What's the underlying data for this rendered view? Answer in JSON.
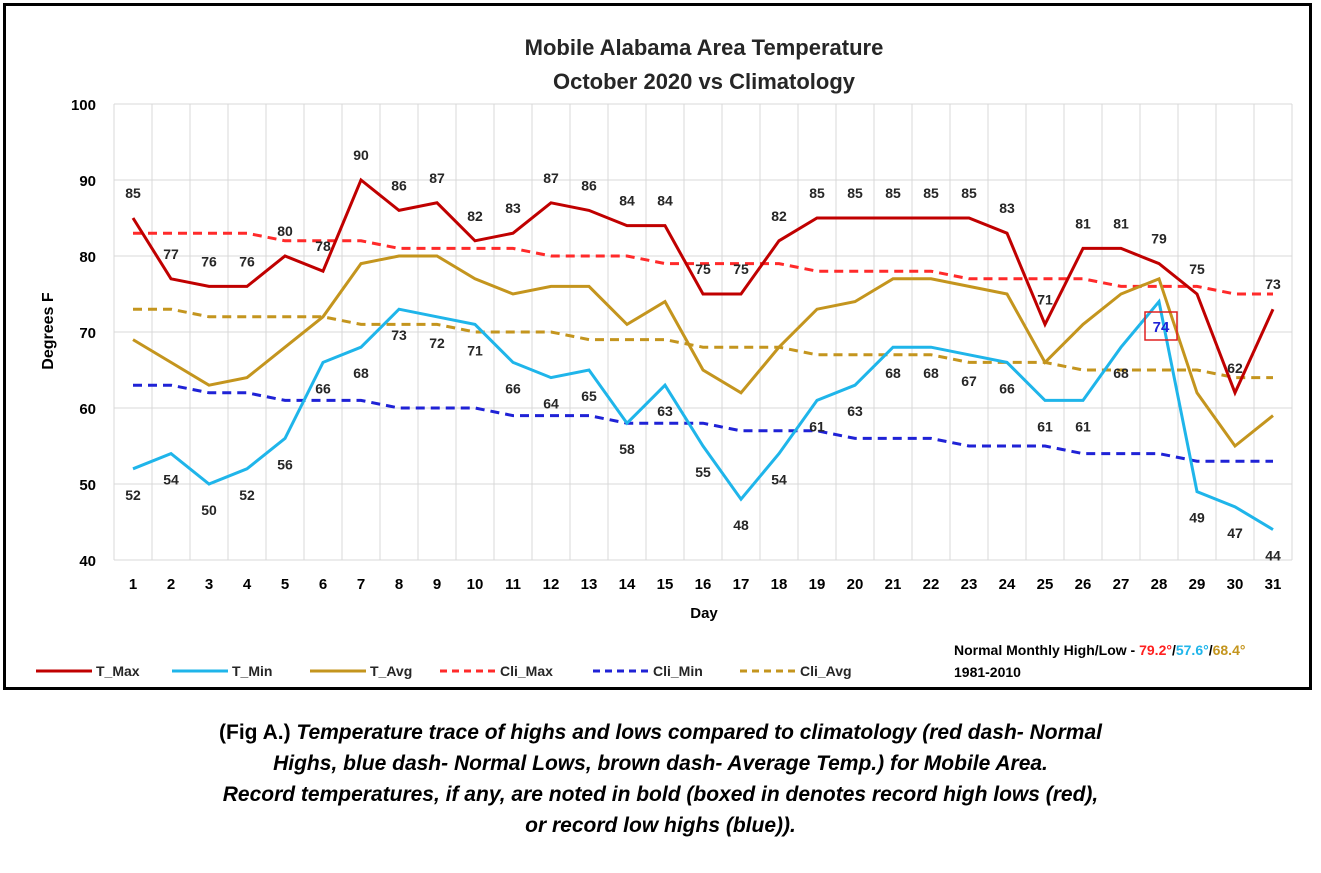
{
  "chart_data": {
    "type": "line",
    "title": "Mobile Alabama Area Temperature",
    "subtitle": "October 2020 vs Climatology",
    "xlabel": "Day",
    "ylabel": "Degrees F",
    "ylim": [
      40,
      100
    ],
    "yticks": [
      "40",
      "50",
      "60",
      "70",
      "80",
      "90",
      "100"
    ],
    "x": [
      "1",
      "2",
      "3",
      "4",
      "5",
      "6",
      "7",
      "8",
      "9",
      "10",
      "11",
      "12",
      "13",
      "14",
      "15",
      "16",
      "17",
      "18",
      "19",
      "20",
      "21",
      "22",
      "23",
      "24",
      "25",
      "26",
      "27",
      "28",
      "29",
      "30",
      "31"
    ],
    "grid": "horizontal and vertical",
    "legend_position": "bottom",
    "series": [
      {
        "name": "T_Max",
        "color": "#C00000",
        "dash": "solid",
        "labels": "above",
        "values": [
          85,
          77,
          76,
          76,
          80,
          78,
          90,
          86,
          87,
          82,
          83,
          87,
          86,
          84,
          84,
          75,
          75,
          82,
          85,
          85,
          85,
          85,
          85,
          83,
          71,
          81,
          81,
          79,
          75,
          62,
          73
        ]
      },
      {
        "name": "T_Min",
        "color": "#1FB5EA",
        "dash": "solid",
        "labels": "below",
        "values": [
          52,
          54,
          50,
          52,
          56,
          66,
          68,
          73,
          72,
          71,
          66,
          64,
          65,
          58,
          63,
          55,
          48,
          54,
          61,
          63,
          68,
          68,
          67,
          66,
          61,
          61,
          68,
          74,
          49,
          47,
          44
        ]
      },
      {
        "name": "T_Avg",
        "color": "#C4951E",
        "dash": "solid",
        "labels": "none",
        "values": [
          69,
          66,
          63,
          64,
          68,
          72,
          79,
          80,
          80,
          77,
          75,
          76,
          76,
          71,
          74,
          65,
          62,
          68,
          73,
          74,
          77,
          77,
          76,
          75,
          66,
          71,
          75,
          77,
          62,
          55,
          59
        ]
      },
      {
        "name": "Cli_Max",
        "color": "#FF2A2A",
        "dash": "dashed",
        "labels": "none",
        "values": [
          83,
          83,
          83,
          83,
          82,
          82,
          82,
          81,
          81,
          81,
          81,
          80,
          80,
          80,
          79,
          79,
          79,
          79,
          78,
          78,
          78,
          78,
          77,
          77,
          77,
          77,
          76,
          76,
          76,
          75,
          75
        ]
      },
      {
        "name": "Cli_Min",
        "color": "#1F22D6",
        "dash": "dashed",
        "labels": "none",
        "values": [
          63,
          63,
          62,
          62,
          61,
          61,
          61,
          60,
          60,
          60,
          59,
          59,
          59,
          58,
          58,
          58,
          57,
          57,
          57,
          56,
          56,
          56,
          55,
          55,
          55,
          54,
          54,
          54,
          53,
          53,
          53
        ]
      },
      {
        "name": "Cli_Avg",
        "color": "#C4951E",
        "dash": "dashed",
        "labels": "none",
        "values": [
          73,
          73,
          72,
          72,
          72,
          72,
          71,
          71,
          71,
          70,
          70,
          70,
          69,
          69,
          69,
          68,
          68,
          68,
          67,
          67,
          67,
          67,
          66,
          66,
          66,
          65,
          65,
          65,
          65,
          64,
          64
        ]
      }
    ],
    "annotations": [
      {
        "text": "74",
        "series": "T_Min",
        "day": "28",
        "boxed": true,
        "box_color": "#E02020",
        "text_color": "#1F22D6"
      }
    ]
  },
  "normals": {
    "label": "Normal Monthly High/Low - ",
    "high": "79.2°",
    "sep1": "/",
    "low": "57.6°",
    "sep2": "/",
    "avg": "68.4°",
    "period": "1981-2010",
    "high_color": "#FF2020",
    "low_color": "#1FB5EA",
    "avg_color": "#C4951E"
  },
  "caption": {
    "fig": "(Fig A.) ",
    "line1": "Temperature trace of highs and lows compared to climatology (red dash- Normal",
    "line2": "Highs, blue dash- Normal Lows, brown dash- Average Temp.) for Mobile Area.",
    "line3": "Record temperatures, if any, are noted in bold (boxed in denotes record high lows (red),",
    "line4": "or record low highs (blue))."
  }
}
